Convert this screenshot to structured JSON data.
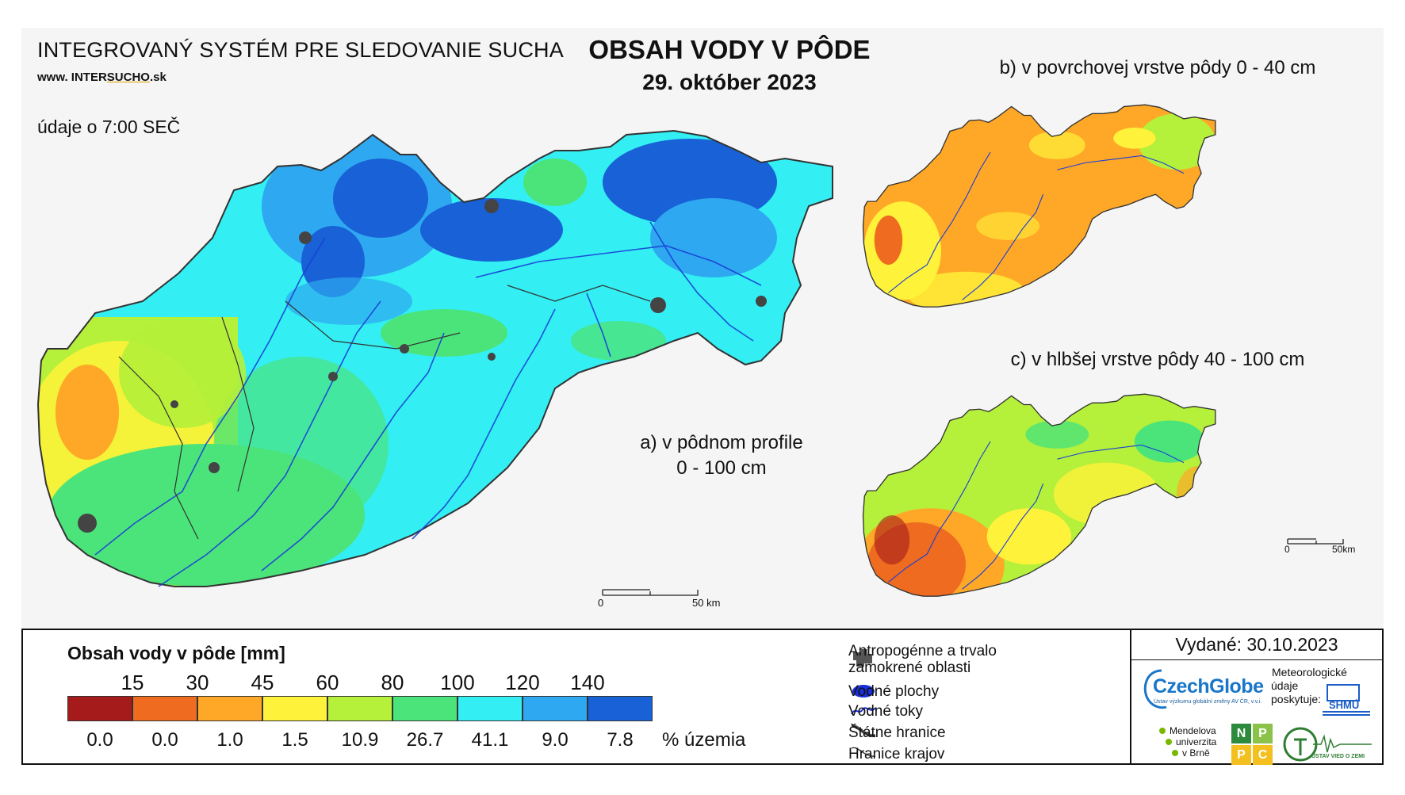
{
  "header": {
    "system_title": "INTEGROVANÝ SYSTÉM PRE SLEDOVANIE SUCHA",
    "url_prefix": "www. INTER",
    "url_highlight": "SUCHO",
    "url_suffix": ".sk",
    "time_note": "údaje o 7:00 SEČ",
    "main_title": "OBSAH VODY V PÔDE",
    "main_date": "29. október 2023"
  },
  "maps": {
    "a_label_line1": "a) v pôdnom profile",
    "a_label_line2": "0 - 100 cm",
    "b_label": "b) v povrchovej vrstve pôdy 0 - 40 cm",
    "c_label": "c) v hlbšej vrstve pôdy 40 - 100 cm",
    "scale_zero": "0",
    "scale_max": "50 km",
    "scale_max_small": "50km"
  },
  "legend": {
    "title": "Obsah vody v pôde  [mm]",
    "thresholds": [
      "15",
      "30",
      "45",
      "60",
      "80",
      "100",
      "120",
      "140"
    ],
    "colors": [
      "#a51b1b",
      "#ee6b1f",
      "#ffa726",
      "#fff23a",
      "#b5f03a",
      "#4be47a",
      "#33eef3",
      "#2ea8f0",
      "#1861d6"
    ],
    "percent_of_territory": [
      "0.0",
      "0.0",
      "1.0",
      "1.5",
      "10.9",
      "26.7",
      "41.1",
      "9.0",
      "7.8"
    ],
    "percent_unit": "% územia"
  },
  "symbols": {
    "anthropogenic_line1": "Antropogénne a trvalo",
    "anthropogenic_line2": "zamokrené oblasti",
    "water_bodies": "Vodné plochy",
    "water_streams": "Vodné toky",
    "state_borders": "Štátne hranice",
    "region_borders": "Hranice krajov"
  },
  "footer": {
    "issued": "Vydané: 30.10.2023",
    "czechglobe": "CzechGlobe",
    "czechglobe_sub": "Ústav výzkumu globální změny AV ČR, v.v.i.",
    "meteo_line1": "Meteorologické",
    "meteo_line2": "údaje",
    "meteo_line3": "poskytuje:",
    "shmu": "SHMÚ",
    "mendel_line1": "Mendelova",
    "mendel_line2": "univerzita",
    "mendel_line3": "v Brně",
    "nppc_letters": [
      "N",
      "P",
      "P",
      "C"
    ],
    "uvz": "ÚSTAV VIED O ZEMI"
  }
}
